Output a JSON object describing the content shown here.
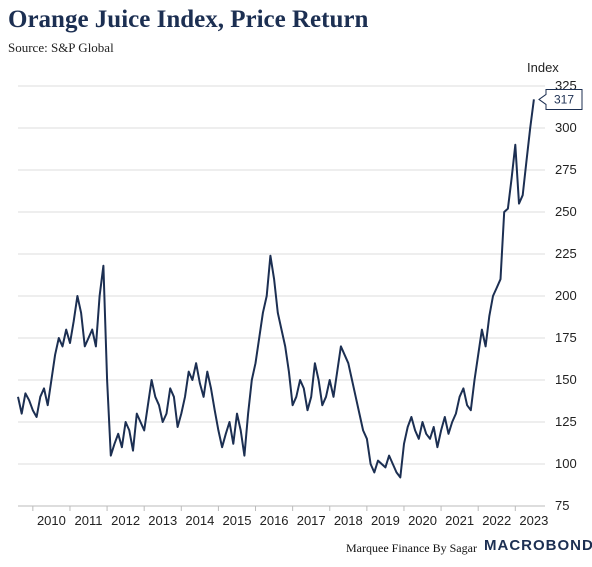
{
  "chart_data": {
    "type": "line",
    "title": "Orange Juice Index, Price Return",
    "subtitle": "Source: S&P Global",
    "ylabel": "Index",
    "ylim": [
      75,
      325
    ],
    "yticks": [
      75,
      100,
      125,
      150,
      175,
      200,
      225,
      250,
      275,
      300,
      325
    ],
    "xlim": [
      2009.6,
      2023.8
    ],
    "xticks": [
      "2010",
      "2011",
      "2012",
      "2013",
      "2014",
      "2015",
      "2016",
      "2017",
      "2018",
      "2019",
      "2020",
      "2021",
      "2022",
      "2023"
    ],
    "grid": true,
    "series": [
      {
        "color": "#1c2f52",
        "x": [
          2009.6,
          2009.7,
          2009.8,
          2009.9,
          2010.0,
          2010.1,
          2010.2,
          2010.3,
          2010.4,
          2010.5,
          2010.6,
          2010.7,
          2010.8,
          2010.9,
          2011.0,
          2011.1,
          2011.2,
          2011.3,
          2011.4,
          2011.5,
          2011.6,
          2011.7,
          2011.8,
          2011.9,
          2012.0,
          2012.1,
          2012.2,
          2012.3,
          2012.4,
          2012.5,
          2012.6,
          2012.7,
          2012.8,
          2012.9,
          2013.0,
          2013.1,
          2013.2,
          2013.3,
          2013.4,
          2013.5,
          2013.6,
          2013.7,
          2013.8,
          2013.9,
          2014.0,
          2014.1,
          2014.2,
          2014.3,
          2014.4,
          2014.5,
          2014.6,
          2014.7,
          2014.8,
          2014.9,
          2015.0,
          2015.1,
          2015.2,
          2015.3,
          2015.4,
          2015.5,
          2015.6,
          2015.7,
          2015.8,
          2015.9,
          2016.0,
          2016.1,
          2016.2,
          2016.3,
          2016.4,
          2016.5,
          2016.6,
          2016.7,
          2016.8,
          2016.9,
          2017.0,
          2017.1,
          2017.2,
          2017.3,
          2017.4,
          2017.5,
          2017.6,
          2017.7,
          2017.8,
          2017.9,
          2018.0,
          2018.1,
          2018.2,
          2018.3,
          2018.4,
          2018.5,
          2018.6,
          2018.7,
          2018.8,
          2018.9,
          2019.0,
          2019.1,
          2019.2,
          2019.3,
          2019.4,
          2019.5,
          2019.6,
          2019.7,
          2019.8,
          2019.9,
          2020.0,
          2020.1,
          2020.2,
          2020.3,
          2020.4,
          2020.5,
          2020.6,
          2020.7,
          2020.8,
          2020.9,
          2021.0,
          2021.1,
          2021.2,
          2021.3,
          2021.4,
          2021.5,
          2021.6,
          2021.7,
          2021.8,
          2021.9,
          2022.0,
          2022.1,
          2022.2,
          2022.3,
          2022.4,
          2022.5,
          2022.6,
          2022.7,
          2022.8,
          2022.9,
          2023.0,
          2023.1,
          2023.2,
          2023.3,
          2023.4,
          2023.5
        ],
        "values": [
          140,
          130,
          142,
          138,
          132,
          128,
          140,
          145,
          135,
          150,
          165,
          175,
          170,
          180,
          172,
          185,
          200,
          190,
          170,
          175,
          180,
          170,
          200,
          218,
          150,
          105,
          112,
          118,
          110,
          125,
          120,
          108,
          130,
          125,
          120,
          135,
          150,
          140,
          135,
          125,
          130,
          145,
          140,
          122,
          130,
          140,
          155,
          150,
          160,
          148,
          140,
          155,
          145,
          132,
          120,
          110,
          118,
          125,
          112,
          130,
          120,
          105,
          130,
          150,
          160,
          175,
          190,
          200,
          224,
          210,
          190,
          180,
          170,
          155,
          135,
          140,
          150,
          145,
          132,
          140,
          160,
          150,
          135,
          140,
          150,
          140,
          155,
          170,
          165,
          160,
          150,
          140,
          130,
          120,
          115,
          100,
          95,
          102,
          100,
          98,
          105,
          100,
          95,
          92,
          112,
          122,
          128,
          120,
          115,
          125,
          118,
          115,
          122,
          110,
          120,
          128,
          118,
          125,
          130,
          140,
          145,
          135,
          132,
          150,
          165,
          180,
          170,
          188,
          200,
          205,
          210,
          250,
          252,
          270,
          290,
          255,
          260,
          280,
          300,
          317
        ]
      }
    ],
    "annotations": [
      {
        "x": 2023.5,
        "y": 317,
        "label": "317"
      }
    ]
  },
  "footer": {
    "credit": "Marquee Finance By Sagar",
    "brand": "MACROBOND"
  }
}
